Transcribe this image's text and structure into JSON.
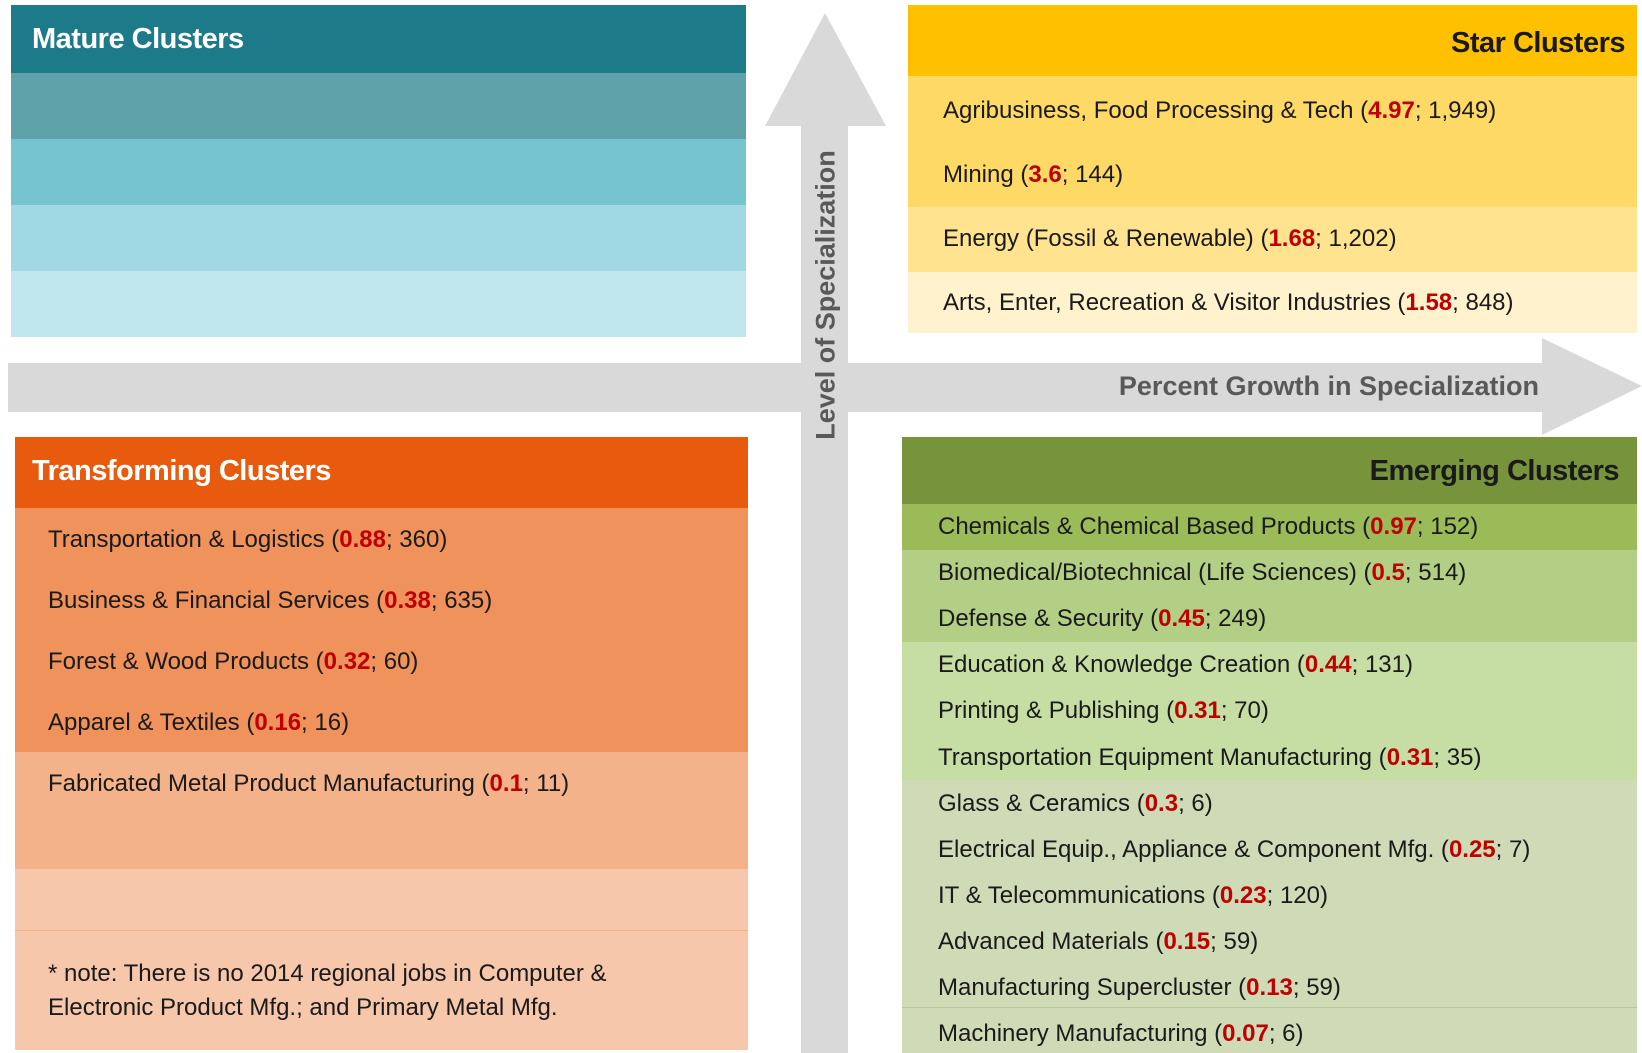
{
  "axes": {
    "y_label": "Level of Specialization",
    "x_label": "Percent Growth in Specialization"
  },
  "quadrants": {
    "mature": {
      "title": "Mature Clusters"
    },
    "star": {
      "title": "Star Clusters",
      "items": [
        [
          "Agribusiness, Food Processing & Tech (",
          "4.97",
          "; 1,949)"
        ],
        [
          "Mining (",
          "3.6",
          "; 144)"
        ],
        [
          "Energy (Fossil & Renewable) (",
          "1.68",
          "; 1,202)"
        ],
        [
          "Arts, Enter, Recreation & Visitor Industries (",
          "1.58",
          "; 848)"
        ]
      ]
    },
    "transforming": {
      "title": "Transforming Clusters",
      "items": [
        [
          "Transportation & Logistics (",
          "0.88",
          "; 360)"
        ],
        [
          "Business & Financial Services (",
          "0.38",
          "; 635)"
        ],
        [
          "Forest & Wood Products (",
          "0.32",
          "; 60)"
        ],
        [
          "Apparel & Textiles (",
          "0.16",
          "; 16)"
        ],
        [
          "Fabricated Metal Product Manufacturing (",
          "0.1",
          "; 11)"
        ]
      ],
      "note": "* note: There is no 2014 regional jobs in Computer & Electronic Product Mfg.; and Primary Metal Mfg."
    },
    "emerging": {
      "title": "Emerging Clusters",
      "items": [
        [
          "Chemicals & Chemical Based Products (",
          "0.97",
          "; 152)"
        ],
        [
          "Biomedical/Biotechnical (Life Sciences) (",
          "0.5",
          "; 514)"
        ],
        [
          "Defense & Security (",
          "0.45",
          "; 249)"
        ],
        [
          "Education & Knowledge Creation (",
          "0.44",
          "; 131)"
        ],
        [
          "Printing & Publishing (",
          "0.31",
          "; 70)"
        ],
        [
          "Transportation Equipment Manufacturing (",
          "0.31",
          "; 35)"
        ],
        [
          "Glass & Ceramics (",
          "0.3",
          "; 6)"
        ],
        [
          "Electrical Equip., Appliance & Component Mfg. (",
          "0.25",
          "; 7)"
        ],
        [
          "IT & Telecommunications (",
          "0.23",
          "; 120)"
        ],
        [
          "Advanced Materials (",
          "0.15",
          "; 59)"
        ],
        [
          "Manufacturing Supercluster (",
          "0.13",
          "; 59)"
        ],
        [
          "Machinery Manufacturing (",
          "0.07",
          "; 6)"
        ]
      ]
    }
  }
}
